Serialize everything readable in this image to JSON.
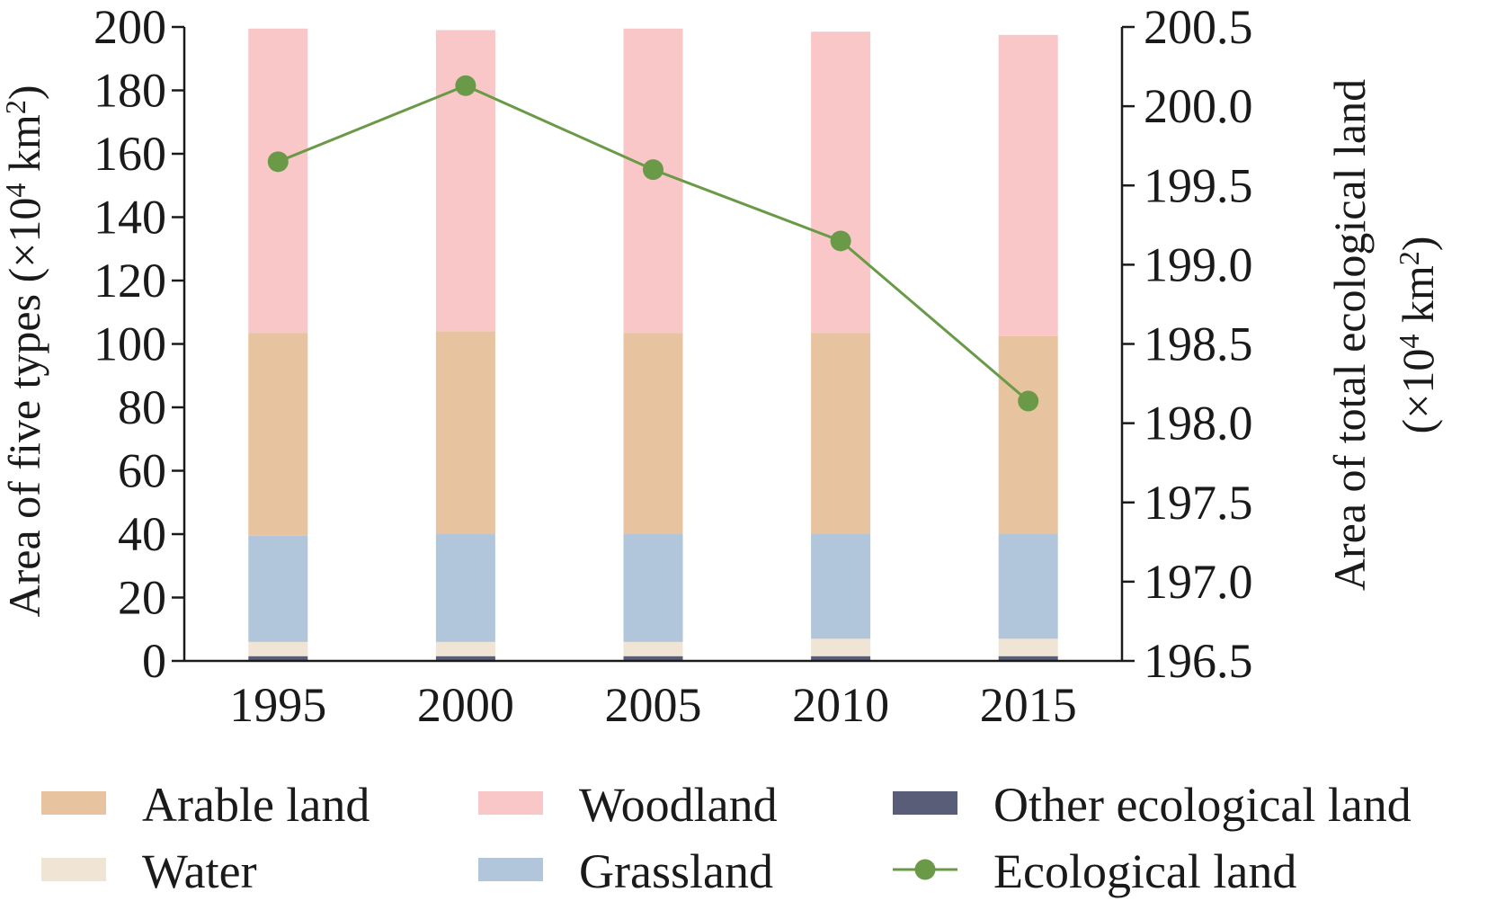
{
  "chart_data": {
    "type": "bar",
    "categories": [
      "1995",
      "2000",
      "2005",
      "2010",
      "2015"
    ],
    "series": [
      {
        "name": "Other ecological land",
        "chart": "stacked-bar",
        "axis": "left",
        "color": "#5a5d78",
        "values": [
          1.5,
          1.5,
          1.5,
          1.5,
          1.5
        ]
      },
      {
        "name": "Water",
        "chart": "stacked-bar",
        "axis": "left",
        "color": "#f0e4d4",
        "values": [
          4.5,
          4.5,
          4.5,
          5.5,
          5.5
        ]
      },
      {
        "name": "Grassland",
        "chart": "stacked-bar",
        "axis": "left",
        "color": "#b1c6da",
        "values": [
          33.5,
          34,
          34,
          33,
          33
        ]
      },
      {
        "name": "Arable land",
        "chart": "stacked-bar",
        "axis": "left",
        "color": "#e8c3a0",
        "values": [
          64,
          64,
          63.5,
          63.5,
          62.5
        ]
      },
      {
        "name": "Woodland",
        "chart": "stacked-bar",
        "axis": "left",
        "color": "#f9c7c7",
        "values": [
          96,
          95,
          96,
          95,
          95
        ]
      },
      {
        "name": "Ecological land",
        "chart": "line",
        "axis": "right",
        "color": "#6a9a48",
        "values": [
          199.65,
          200.13,
          199.6,
          199.15,
          198.14
        ]
      }
    ],
    "y_left": {
      "label_parts": [
        "Area of five types (×10",
        "4",
        " km",
        "2",
        ")"
      ],
      "ylim": [
        0,
        200
      ],
      "ticks": [
        "0",
        "20",
        "40",
        "60",
        "80",
        "100",
        "120",
        "140",
        "160",
        "180",
        "200"
      ]
    },
    "y_right": {
      "label_line1": "Area of total ecological land",
      "label_line2_parts": [
        "(×10",
        "4",
        " km",
        "2",
        ")"
      ],
      "ylim": [
        196.5,
        200.5
      ],
      "ticks": [
        "196.5",
        "197.0",
        "197.5",
        "198.0",
        "198.5",
        "199.0",
        "199.5",
        "200.0",
        "200.5"
      ]
    },
    "legend": {
      "placement": "bottom",
      "order": [
        "Arable land",
        "Woodland",
        "Other ecological land",
        "Water",
        "Grassland",
        "Ecological land"
      ]
    }
  }
}
